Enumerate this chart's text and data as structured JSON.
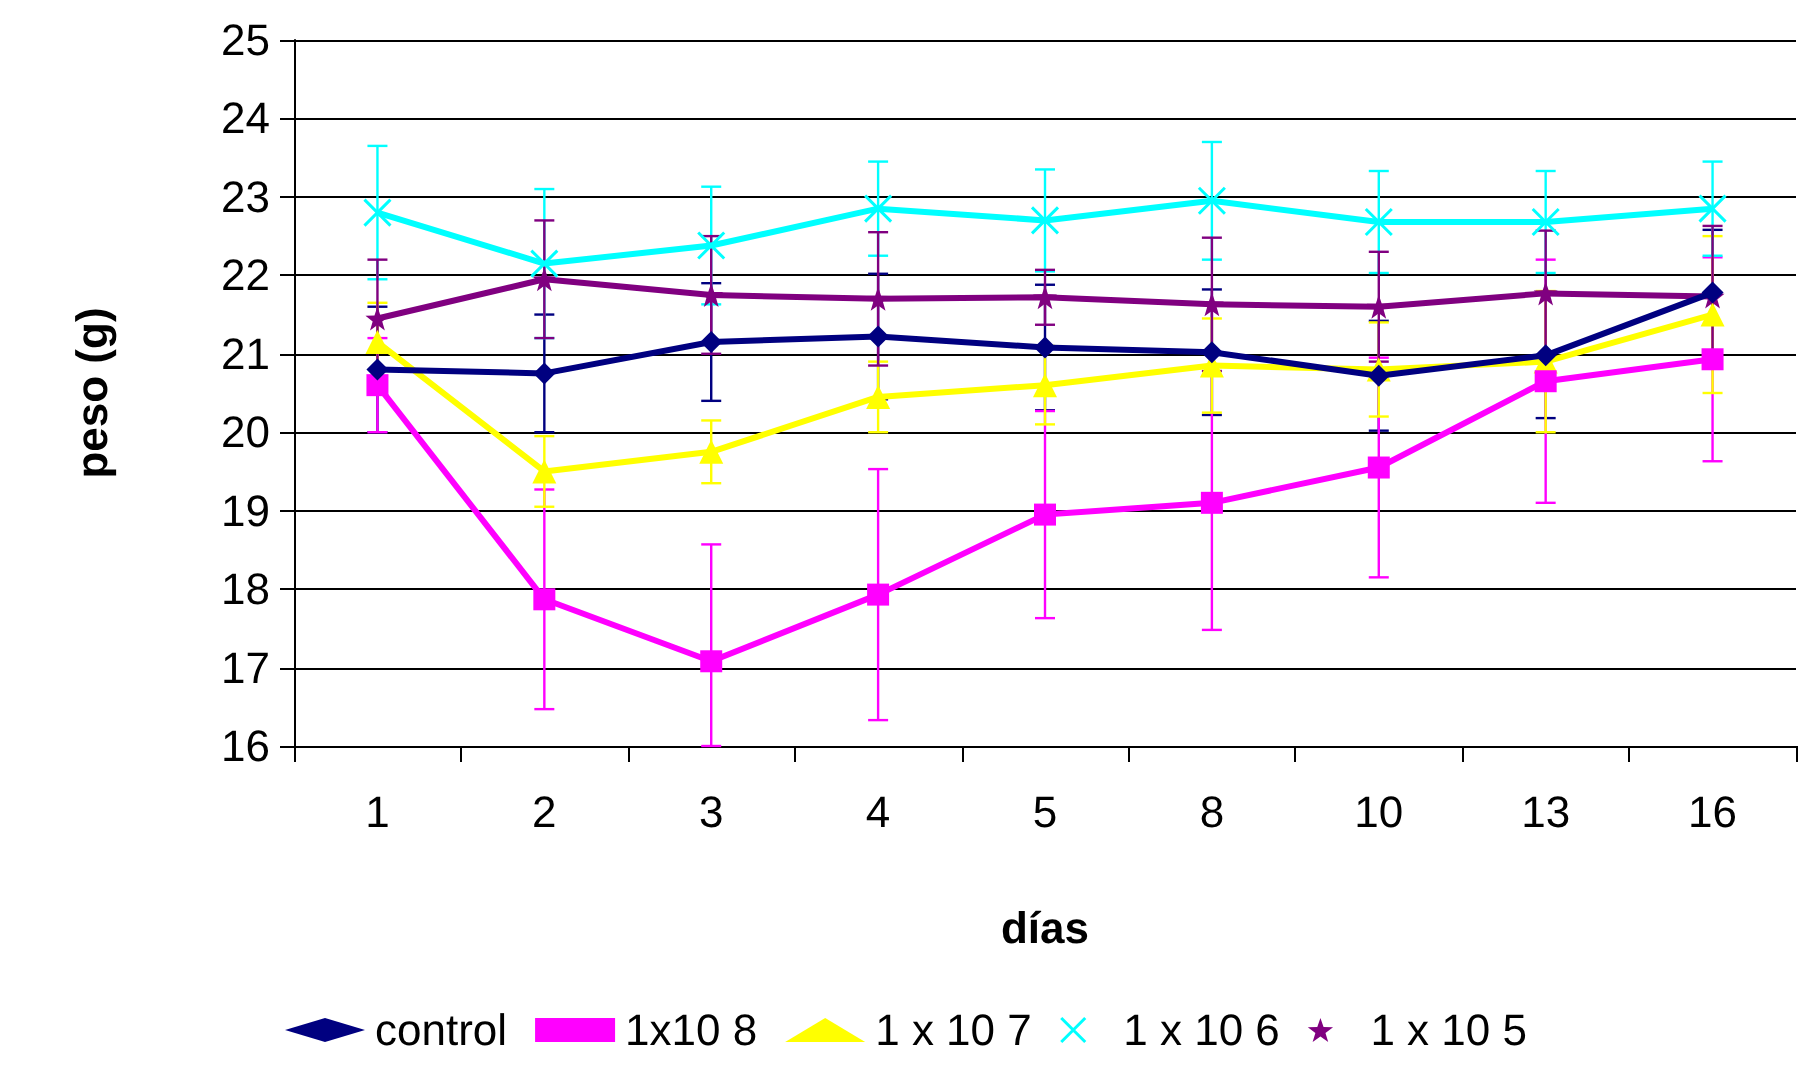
{
  "chart_data": {
    "type": "line",
    "xlabel": "días",
    "ylabel": "peso (g)",
    "categories": [
      "1",
      "2",
      "3",
      "4",
      "5",
      "8",
      "10",
      "13",
      "16"
    ],
    "ylim": [
      16,
      25
    ],
    "yticks": [
      16,
      17,
      18,
      19,
      20,
      21,
      22,
      23,
      24,
      25
    ],
    "grid": "y",
    "legend": "bottom",
    "series": [
      {
        "name": "control",
        "color": "#000080",
        "marker": "diamond",
        "values": [
          20.8,
          20.75,
          21.15,
          21.22,
          21.08,
          21.02,
          20.72,
          20.98,
          21.78
        ],
        "errors": [
          0.8,
          0.75,
          0.75,
          0.8,
          0.8,
          0.8,
          0.7,
          0.8,
          0.8
        ]
      },
      {
        "name": "1x10 8",
        "color": "#ff00ff",
        "marker": "square",
        "values": [
          20.6,
          17.87,
          17.08,
          17.93,
          18.95,
          19.1,
          19.55,
          20.65,
          20.93
        ],
        "errors": [
          0.6,
          1.4,
          [
            16,
            18.57
          ],
          1.6,
          1.32,
          1.62,
          1.4,
          1.55,
          1.3
        ]
      },
      {
        "name": "1 x 10 7",
        "color": "#ffff00",
        "marker": "triangle",
        "values": [
          21.15,
          19.5,
          19.75,
          20.45,
          20.6,
          20.85,
          20.8,
          20.9,
          21.5
        ],
        "errors": [
          0.5,
          0.45,
          0.4,
          0.45,
          0.5,
          0.6,
          0.6,
          0.9,
          1.0
        ]
      },
      {
        "name": "1 x 10 6",
        "color": "#00ffff",
        "marker": "cross",
        "values": [
          22.8,
          22.15,
          22.38,
          22.85,
          22.7,
          22.95,
          22.68,
          22.68,
          22.85
        ],
        "errors": [
          0.85,
          0.95,
          0.75,
          0.6,
          0.65,
          0.75,
          0.65,
          0.65,
          0.6
        ]
      },
      {
        "name": "1 x 10 5",
        "color": "#800080",
        "marker": "star",
        "values": [
          21.45,
          21.95,
          21.75,
          21.7,
          21.72,
          21.63,
          21.6,
          21.77,
          21.73
        ],
        "errors": [
          0.75,
          0.75,
          0.75,
          0.85,
          0.35,
          0.85,
          0.7,
          0.8,
          0.9
        ]
      }
    ]
  }
}
